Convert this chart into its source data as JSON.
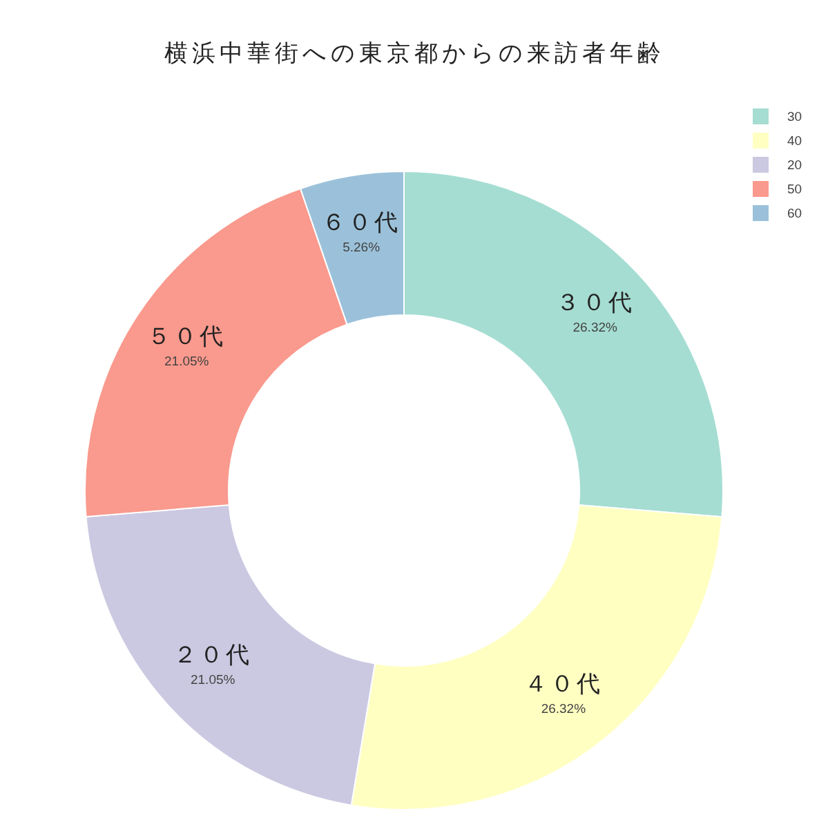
{
  "chart_data": {
    "type": "donut",
    "title": "横浜中華街への東京都からの来訪者年齢",
    "categories": [
      "30",
      "40",
      "20",
      "50",
      "60"
    ],
    "values": [
      26.32,
      26.32,
      21.05,
      21.05,
      5.26
    ],
    "value_labels": [
      "26.32%",
      "26.32%",
      "21.05%",
      "21.05%",
      "5.26%"
    ],
    "colors": [
      "#a5ddd2",
      "#ffffc2",
      "#cbc8e1",
      "#fa998d",
      "#9bc1da"
    ],
    "annotations": [
      {
        "text": "３０代",
        "x": "30"
      },
      {
        "text": "４０代",
        "x": "40"
      },
      {
        "text": "２０代",
        "x": "20"
      },
      {
        "text": "５０代",
        "x": "50"
      },
      {
        "text": "６０代",
        "x": "60"
      }
    ],
    "legend": "top right"
  }
}
